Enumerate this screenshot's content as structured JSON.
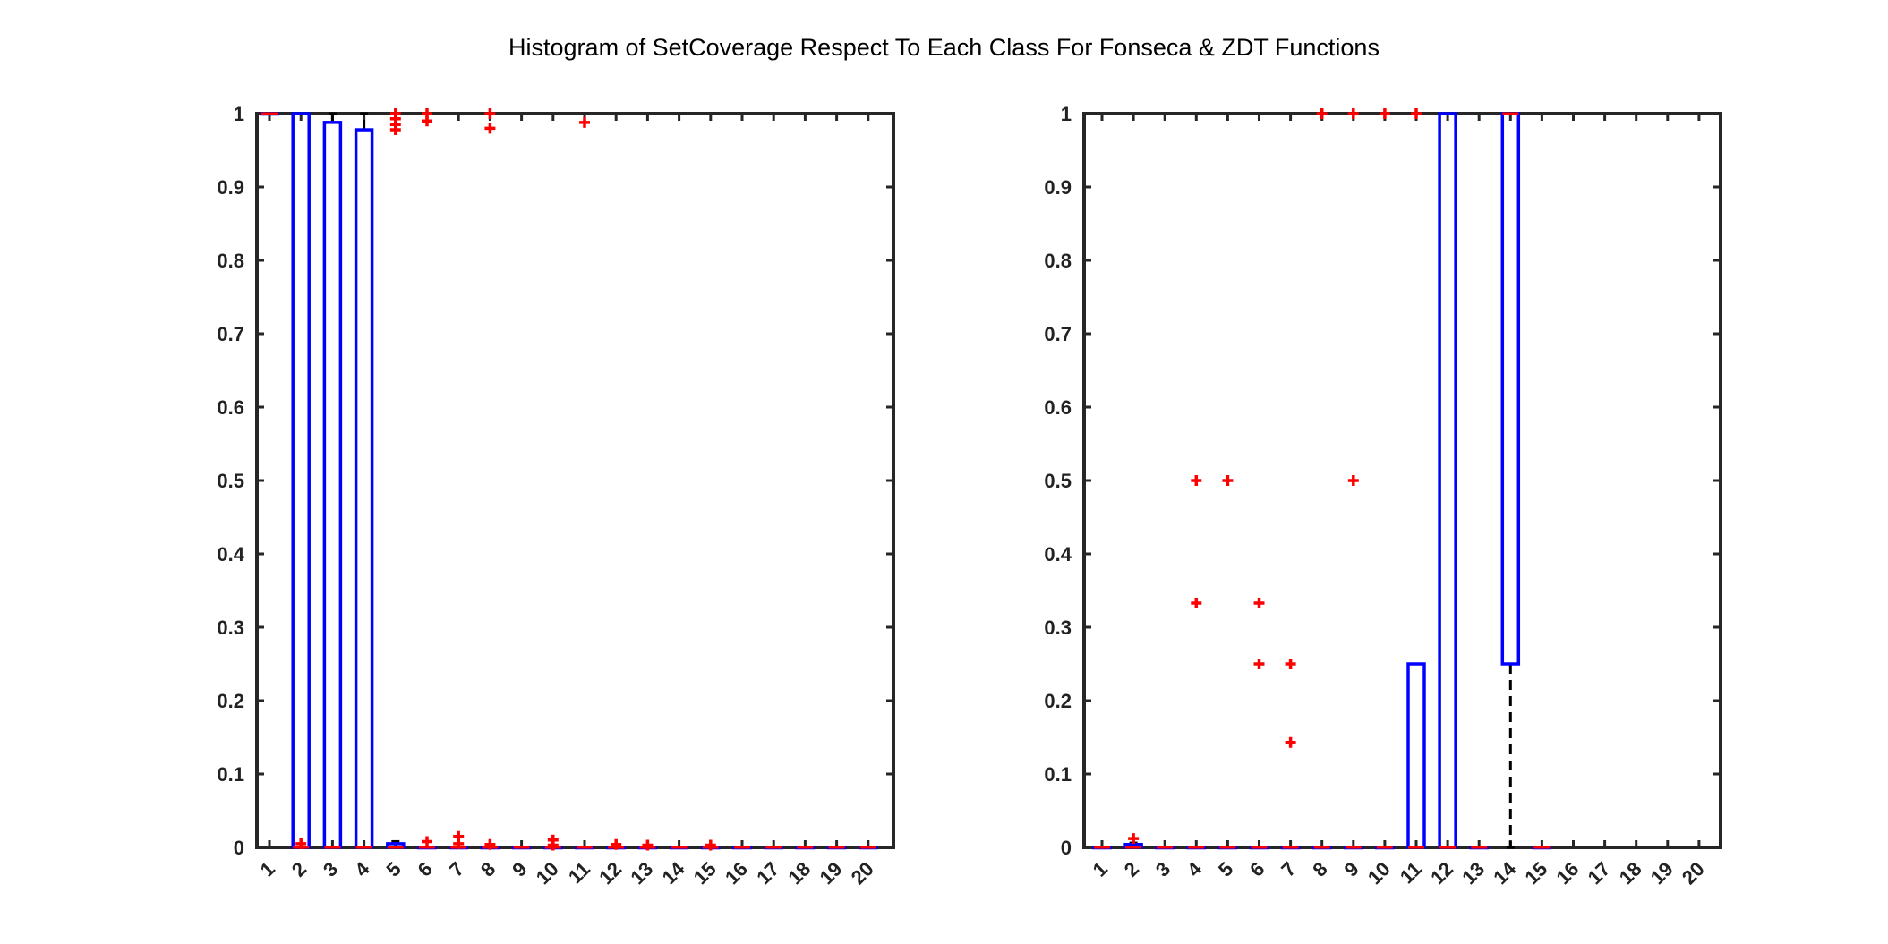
{
  "figure": {
    "title": "Histogram of SetCoverage Respect To Each Class For Fonseca & ZDT Functions"
  },
  "chart_data": [
    {
      "type": "box",
      "title": "",
      "xlabel": "",
      "ylabel": "",
      "categories": [
        "1",
        "2",
        "3",
        "4",
        "5",
        "6",
        "7",
        "8",
        "9",
        "10",
        "11",
        "12",
        "13",
        "14",
        "15",
        "16",
        "17",
        "18",
        "19",
        "20"
      ],
      "ylim": [
        0,
        1
      ],
      "yticks": [
        "0",
        "0.1",
        "0.2",
        "0.3",
        "0.4",
        "0.5",
        "0.6",
        "0.7",
        "0.8",
        "0.9",
        "1"
      ],
      "grid": false,
      "box_color": "#0000ff",
      "outlier_color": "#ff0000",
      "whisker_color": "#000000",
      "boxes": [
        {
          "cat": 1,
          "q1": 1,
          "median": 1,
          "q3": 1,
          "lower": 1,
          "upper": 1
        },
        {
          "cat": 2,
          "q1": 0,
          "median": 0,
          "q3": 1,
          "lower": 0,
          "upper": 1
        },
        {
          "cat": 3,
          "q1": 0,
          "median": 0,
          "q3": 0.988,
          "lower": 0,
          "upper": 1
        },
        {
          "cat": 4,
          "q1": 0,
          "median": 0,
          "q3": 0.978,
          "lower": 0,
          "upper": 1
        },
        {
          "cat": 5,
          "q1": 0,
          "median": 0,
          "q3": 0.005,
          "lower": 0,
          "upper": 0.008
        },
        {
          "cat": 6,
          "q1": 0,
          "median": 0,
          "q3": 0,
          "lower": 0,
          "upper": 0
        },
        {
          "cat": 7,
          "q1": 0,
          "median": 0,
          "q3": 0,
          "lower": 0,
          "upper": 0
        },
        {
          "cat": 8,
          "q1": 0,
          "median": 0,
          "q3": 0,
          "lower": 0,
          "upper": 0
        },
        {
          "cat": 9,
          "q1": 0,
          "median": 0,
          "q3": 0,
          "lower": 0,
          "upper": 0
        },
        {
          "cat": 10,
          "q1": 0,
          "median": 0,
          "q3": 0,
          "lower": 0,
          "upper": 0
        },
        {
          "cat": 11,
          "q1": 0,
          "median": 0,
          "q3": 0,
          "lower": 0,
          "upper": 0
        },
        {
          "cat": 12,
          "q1": 0,
          "median": 0,
          "q3": 0,
          "lower": 0,
          "upper": 0
        },
        {
          "cat": 13,
          "q1": 0,
          "median": 0,
          "q3": 0,
          "lower": 0,
          "upper": 0
        },
        {
          "cat": 14,
          "q1": 0,
          "median": 0,
          "q3": 0,
          "lower": 0,
          "upper": 0
        },
        {
          "cat": 15,
          "q1": 0,
          "median": 0,
          "q3": 0,
          "lower": 0,
          "upper": 0
        },
        {
          "cat": 16,
          "q1": 0,
          "median": 0,
          "q3": 0,
          "lower": 0,
          "upper": 0
        },
        {
          "cat": 17,
          "q1": 0,
          "median": 0,
          "q3": 0,
          "lower": 0,
          "upper": 0
        },
        {
          "cat": 18,
          "q1": 0,
          "median": 0,
          "q3": 0,
          "lower": 0,
          "upper": 0
        },
        {
          "cat": 19,
          "q1": 0,
          "median": 0,
          "q3": 0,
          "lower": 0,
          "upper": 0
        },
        {
          "cat": 20,
          "q1": 0,
          "median": 0,
          "q3": 0,
          "lower": 0,
          "upper": 0
        }
      ],
      "outliers": [
        {
          "cat": 2,
          "values": [
            0.005
          ]
        },
        {
          "cat": 5,
          "values": [
            1,
            0.993,
            0.985,
            0.978
          ]
        },
        {
          "cat": 6,
          "values": [
            1,
            0.99,
            0.008
          ]
        },
        {
          "cat": 7,
          "values": [
            0.015,
            0.005
          ]
        },
        {
          "cat": 8,
          "values": [
            1,
            0.98,
            0.004
          ]
        },
        {
          "cat": 10,
          "values": [
            0.01,
            0.003
          ]
        },
        {
          "cat": 11,
          "values": [
            0.988
          ]
        },
        {
          "cat": 12,
          "values": [
            0.004
          ]
        },
        {
          "cat": 13,
          "values": [
            0.003
          ]
        },
        {
          "cat": 15,
          "values": [
            0.003
          ]
        }
      ]
    },
    {
      "type": "box",
      "title": "",
      "xlabel": "",
      "ylabel": "",
      "categories": [
        "1",
        "2",
        "3",
        "4",
        "5",
        "6",
        "7",
        "8",
        "9",
        "10",
        "11",
        "12",
        "13",
        "14",
        "15",
        "16",
        "17",
        "18",
        "19",
        "20"
      ],
      "ylim": [
        0,
        1
      ],
      "yticks": [
        "0",
        "0.1",
        "0.2",
        "0.3",
        "0.4",
        "0.5",
        "0.6",
        "0.7",
        "0.8",
        "0.9",
        "1"
      ],
      "grid": false,
      "box_color": "#0000ff",
      "outlier_color": "#ff0000",
      "whisker_color": "#000000",
      "boxes": [
        {
          "cat": 1,
          "q1": 0,
          "median": 0,
          "q3": 0,
          "lower": 0,
          "upper": 0
        },
        {
          "cat": 2,
          "q1": 0,
          "median": 0,
          "q3": 0.004,
          "lower": 0,
          "upper": 0.006
        },
        {
          "cat": 3,
          "q1": 0,
          "median": 0,
          "q3": 0,
          "lower": 0,
          "upper": 0
        },
        {
          "cat": 4,
          "q1": 0,
          "median": 0,
          "q3": 0,
          "lower": 0,
          "upper": 0
        },
        {
          "cat": 5,
          "q1": 0,
          "median": 0,
          "q3": 0,
          "lower": 0,
          "upper": 0
        },
        {
          "cat": 6,
          "q1": 0,
          "median": 0,
          "q3": 0,
          "lower": 0,
          "upper": 0
        },
        {
          "cat": 7,
          "q1": 0,
          "median": 0,
          "q3": 0,
          "lower": 0,
          "upper": 0
        },
        {
          "cat": 8,
          "q1": 0,
          "median": 0,
          "q3": 0,
          "lower": 0,
          "upper": 0
        },
        {
          "cat": 9,
          "q1": 0,
          "median": 0,
          "q3": 0,
          "lower": 0,
          "upper": 0
        },
        {
          "cat": 10,
          "q1": 0,
          "median": 0,
          "q3": 0,
          "lower": 0,
          "upper": 0
        },
        {
          "cat": 11,
          "q1": 0,
          "median": 0,
          "q3": 0.25,
          "lower": 0,
          "upper": 0.25
        },
        {
          "cat": 12,
          "q1": 0,
          "median": 0,
          "q3": 1,
          "lower": 0,
          "upper": 1
        },
        {
          "cat": 13,
          "q1": 0,
          "median": 0,
          "q3": 0,
          "lower": 0,
          "upper": 0
        },
        {
          "cat": 14,
          "q1": 0.25,
          "median": 1,
          "q3": 1,
          "lower": 0,
          "upper": 1
        },
        {
          "cat": 15,
          "q1": 0,
          "median": 0,
          "q3": 0,
          "lower": 0,
          "upper": 0
        }
      ],
      "outliers": [
        {
          "cat": 2,
          "values": [
            0.012
          ]
        },
        {
          "cat": 4,
          "values": [
            0.5,
            0.333
          ]
        },
        {
          "cat": 5,
          "values": [
            0.5
          ]
        },
        {
          "cat": 6,
          "values": [
            0.333,
            0.25
          ]
        },
        {
          "cat": 7,
          "values": [
            0.25,
            0.143
          ]
        },
        {
          "cat": 8,
          "values": [
            1
          ]
        },
        {
          "cat": 9,
          "values": [
            1,
            0.5
          ]
        },
        {
          "cat": 10,
          "values": [
            1
          ]
        },
        {
          "cat": 11,
          "values": [
            1
          ]
        }
      ]
    }
  ]
}
